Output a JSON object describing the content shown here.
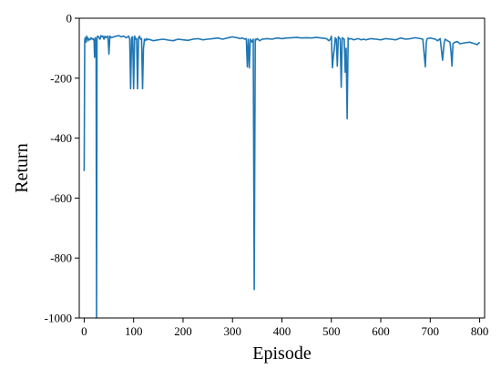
{
  "chart_data": {
    "type": "line",
    "title": "",
    "xlabel": "Episode",
    "ylabel": "Return",
    "xlim": [
      -10,
      810
    ],
    "ylim": [
      -1000,
      0
    ],
    "xticks": [
      0,
      100,
      200,
      300,
      400,
      500,
      600,
      700,
      800
    ],
    "yticks": [
      0,
      -200,
      -400,
      -600,
      -800,
      -1000
    ],
    "grid": false,
    "series_color": "#1f77b4",
    "series": [
      {
        "x": [
          0,
          1,
          2,
          3,
          4,
          5,
          6,
          7,
          8,
          9,
          10,
          12,
          14,
          16,
          18,
          20,
          21,
          22,
          23,
          24,
          25,
          26,
          28,
          30,
          32,
          34,
          36,
          38,
          40,
          42,
          44,
          46,
          48,
          50,
          52,
          55,
          60,
          65,
          70,
          75,
          80,
          85,
          90,
          92,
          94,
          96,
          98,
          100,
          102,
          104,
          106,
          108,
          110,
          112,
          114,
          116,
          118,
          120,
          122,
          124,
          126,
          128,
          130,
          140,
          150,
          160,
          170,
          180,
          190,
          200,
          210,
          220,
          230,
          240,
          250,
          260,
          270,
          280,
          290,
          300,
          305,
          310,
          315,
          320,
          325,
          328,
          330,
          332,
          334,
          336,
          338,
          340,
          342,
          344,
          346,
          348,
          350,
          355,
          360,
          370,
          380,
          390,
          400,
          410,
          420,
          430,
          440,
          450,
          460,
          470,
          480,
          490,
          495,
          498,
          500,
          502,
          504,
          506,
          508,
          510,
          512,
          514,
          516,
          518,
          520,
          522,
          524,
          526,
          528,
          530,
          532,
          534,
          536,
          540,
          545,
          550,
          555,
          560,
          565,
          570,
          580,
          590,
          600,
          610,
          620,
          630,
          640,
          650,
          660,
          670,
          680,
          685,
          690,
          692,
          694,
          700,
          710,
          715,
          720,
          725,
          728,
          730,
          735,
          740,
          742,
          744,
          746,
          750,
          755,
          760,
          770,
          780,
          790,
          795,
          800
        ],
        "y": [
          -510,
          -75,
          -65,
          -70,
          -80,
          -60,
          -70,
          -65,
          -75,
          -68,
          -70,
          -72,
          -65,
          -70,
          -68,
          -75,
          -130,
          -65,
          -70,
          -90,
          -1000,
          -62,
          -60,
          -65,
          -70,
          -58,
          -62,
          -60,
          -70,
          -60,
          -65,
          -62,
          -60,
          -120,
          -60,
          -65,
          -62,
          -60,
          -58,
          -62,
          -60,
          -65,
          -60,
          -70,
          -235,
          -65,
          -62,
          -235,
          -60,
          -70,
          -68,
          -235,
          -65,
          -60,
          -70,
          -68,
          -235,
          -100,
          -70,
          -75,
          -68,
          -72,
          -70,
          -75,
          -72,
          -70,
          -73,
          -75,
          -70,
          -72,
          -74,
          -70,
          -68,
          -72,
          -70,
          -68,
          -66,
          -70,
          -66,
          -62,
          -64,
          -65,
          -68,
          -66,
          -70,
          -68,
          -162,
          -70,
          -165,
          -70,
          -75,
          -80,
          -70,
          -905,
          -70,
          -72,
          -68,
          -75,
          -70,
          -68,
          -70,
          -66,
          -68,
          -66,
          -65,
          -64,
          -66,
          -65,
          -66,
          -64,
          -66,
          -68,
          -75,
          -70,
          -60,
          -165,
          -130,
          -100,
          -65,
          -70,
          -160,
          -62,
          -66,
          -70,
          -230,
          -65,
          -68,
          -70,
          -180,
          -100,
          -335,
          -65,
          -70,
          -68,
          -72,
          -70,
          -68,
          -72,
          -70,
          -72,
          -68,
          -70,
          -72,
          -68,
          -70,
          -72,
          -66,
          -70,
          -68,
          -65,
          -68,
          -70,
          -162,
          -80,
          -68,
          -66,
          -70,
          -75,
          -68,
          -140,
          -85,
          -70,
          -75,
          -80,
          -110,
          -160,
          -85,
          -80,
          -78,
          -85,
          -82,
          -80,
          -85,
          -88,
          -80
        ]
      }
    ]
  }
}
